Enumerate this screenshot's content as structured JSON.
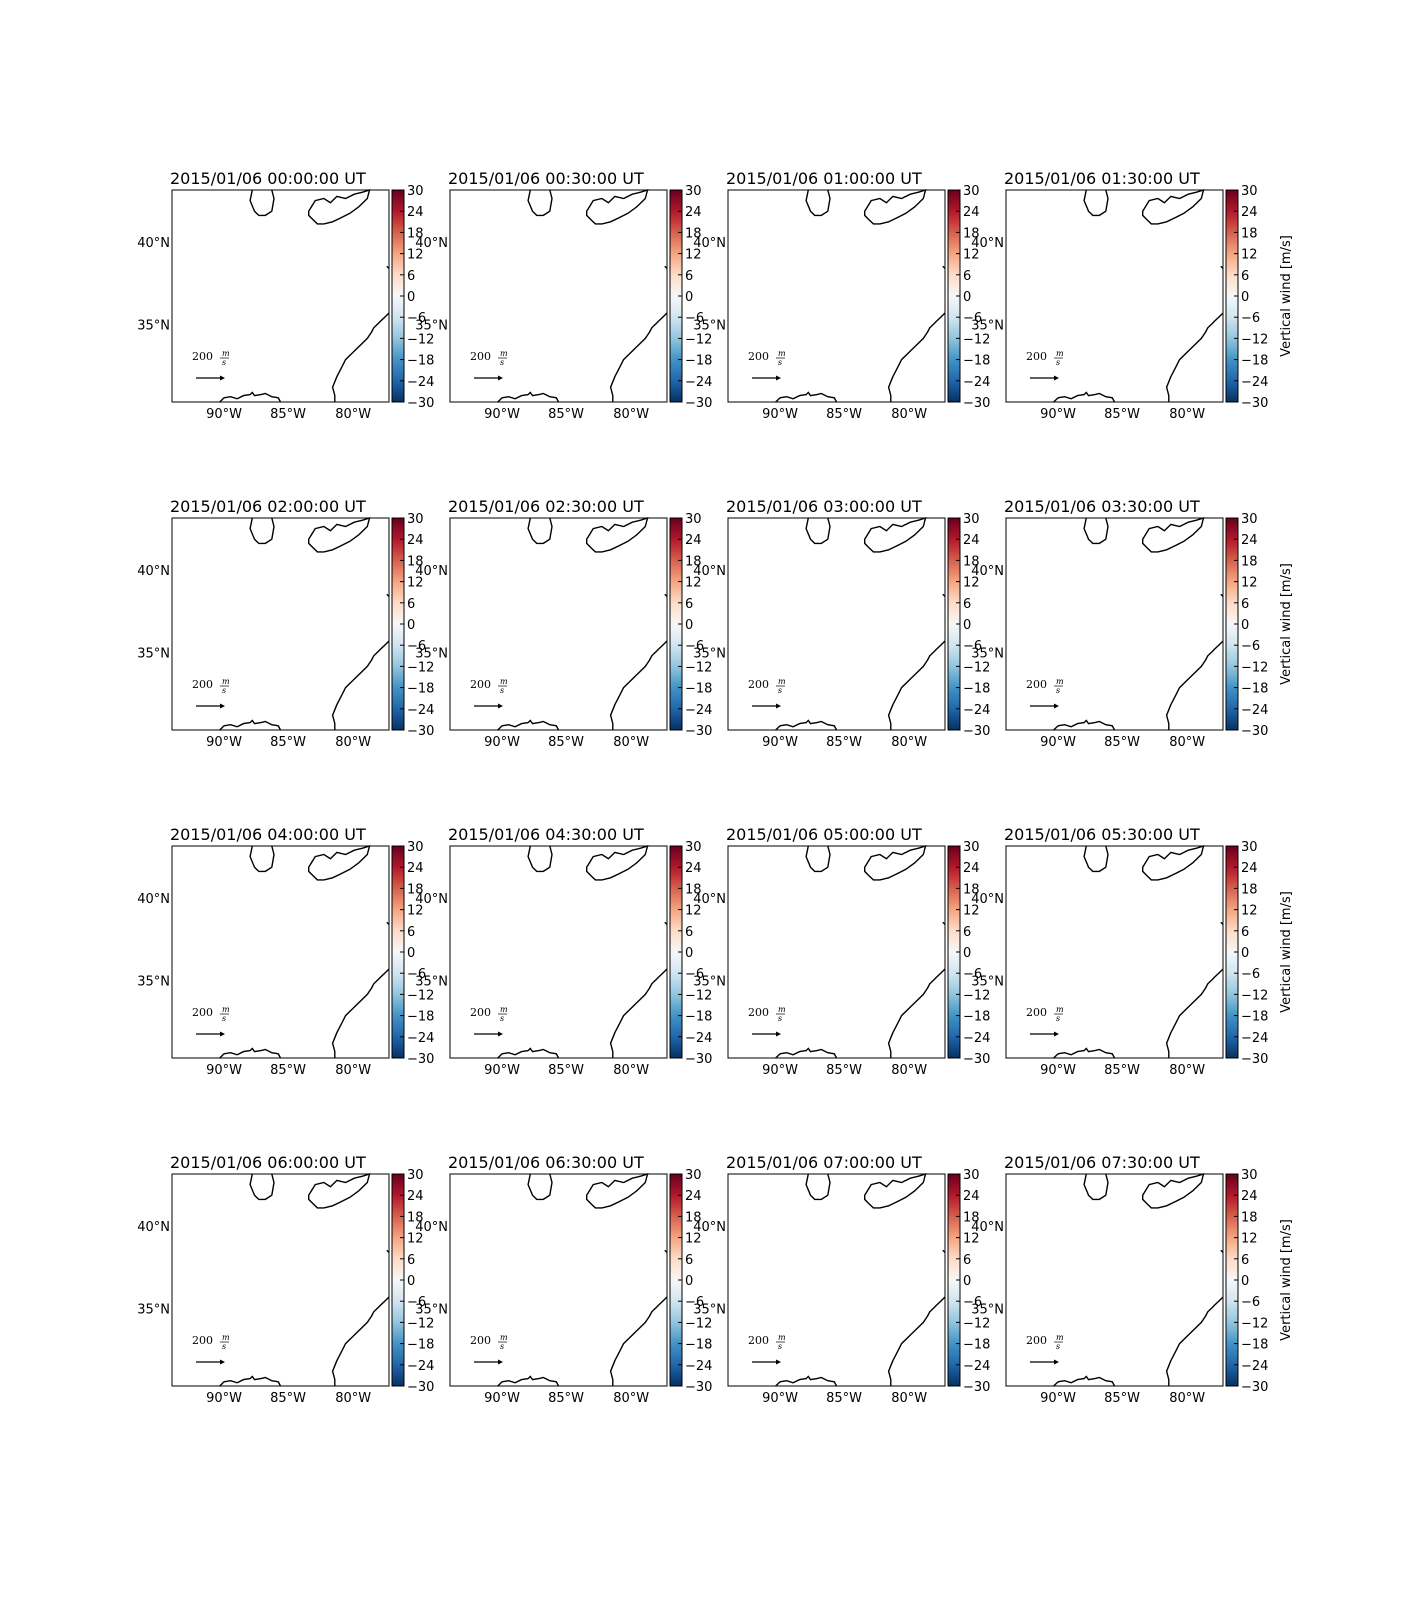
{
  "figure": {
    "title_suffix": "UT",
    "timestamps": [
      "2015/01/06 00:00:00",
      "2015/01/06 00:30:00",
      "2015/01/06 01:00:00",
      "2015/01/06 01:30:00",
      "2015/01/06 02:00:00",
      "2015/01/06 02:30:00",
      "2015/01/06 03:00:00",
      "2015/01/06 03:30:00",
      "2015/01/06 04:00:00",
      "2015/01/06 04:30:00",
      "2015/01/06 05:00:00",
      "2015/01/06 05:30:00",
      "2015/01/06 06:00:00",
      "2015/01/06 06:30:00",
      "2015/01/06 07:00:00",
      "2015/01/06 07:30:00"
    ],
    "lat_labels": [
      "40°N",
      "35°N"
    ],
    "lon_labels": [
      "90°W",
      "85°W",
      "80°W"
    ],
    "colorbar": {
      "label": "Vertical wind [m/s]",
      "ticks": [
        "30",
        "24",
        "18",
        "12",
        "6",
        "0",
        "−6",
        "−12",
        "−18",
        "−24",
        "−30"
      ],
      "vmin": -30,
      "vmax": 30,
      "colors": [
        "#67001f",
        "#b2182b",
        "#d6604d",
        "#f4a582",
        "#fddbc7",
        "#f7f7f7",
        "#d1e5f0",
        "#92c5de",
        "#4393c3",
        "#2166ac",
        "#053061"
      ]
    },
    "quiver_key": {
      "value": "200",
      "unit_numerator": "m",
      "unit_denominator": "s"
    }
  }
}
